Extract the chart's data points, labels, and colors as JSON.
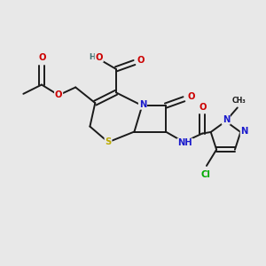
{
  "bg_color": "#e8e8e8",
  "bond_color": "#1a1a1a",
  "bond_width": 1.4,
  "atom_colors": {
    "C": "#1a1a1a",
    "N": "#1a1acc",
    "O": "#cc0000",
    "S": "#bbaa00",
    "Cl": "#00aa00",
    "H": "#407070"
  },
  "font_size": 7.2
}
